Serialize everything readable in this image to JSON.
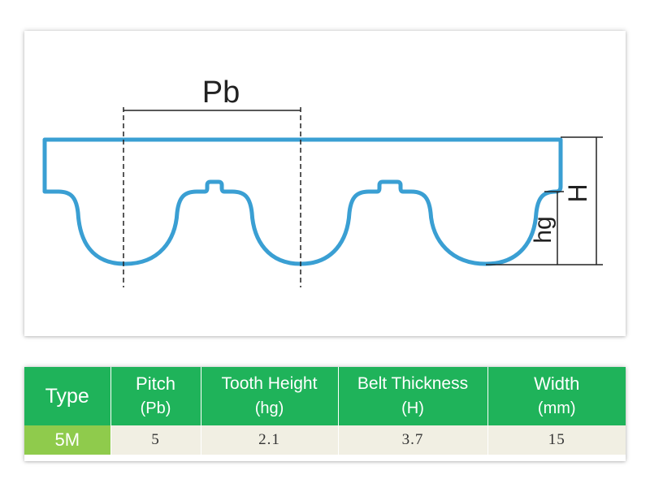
{
  "diagram": {
    "pitch_label": "Pb",
    "thickness_label": "H",
    "tooth_height_label": "hg",
    "belt_color": "#3a9fd3",
    "line_color": "#222222"
  },
  "table": {
    "header_color": "#1fb35a",
    "type_cell_color": "#8fcb4c",
    "row_color": "#f1efe3",
    "headers": [
      {
        "main": "Type",
        "sub": ""
      },
      {
        "main": "Pitch",
        "sub": "(Pb)"
      },
      {
        "main": "Tooth Height",
        "sub": "(hg)"
      },
      {
        "main": "Belt Thickness",
        "sub": "(H)"
      },
      {
        "main": "Width",
        "sub": "(mm)"
      }
    ],
    "rows": [
      {
        "type": "5M",
        "pitch": "5",
        "tooth_height": "2.1",
        "thickness": "3.7",
        "width": "15"
      }
    ]
  }
}
